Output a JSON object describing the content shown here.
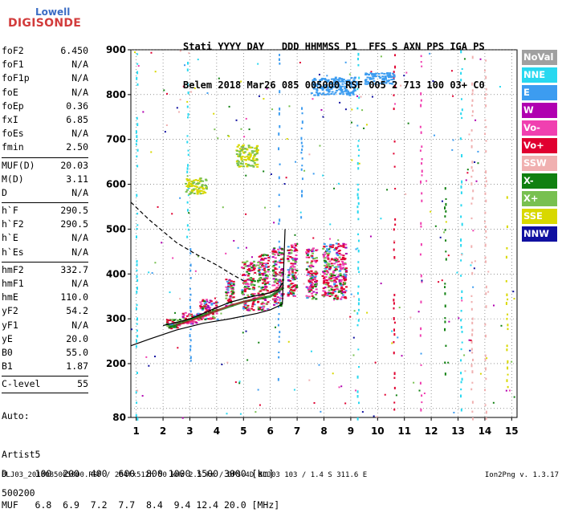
{
  "logo": {
    "brand_top": "Lowell",
    "brand_main": "DIGISONDE"
  },
  "header": {
    "line1": "Stati YYYY DAY   DDD HHMMSS P1  FFS S AXN PPS IGA PS",
    "line2": "Belem 2018 Mar26 085 005000 RSF 005 2 713 100 03+ C0"
  },
  "params_group1": [
    {
      "name": "foF2",
      "value": "6.450"
    },
    {
      "name": "foF1",
      "value": "N/A"
    },
    {
      "name": "foF1p",
      "value": "N/A"
    },
    {
      "name": "foE",
      "value": "N/A"
    },
    {
      "name": "foEp",
      "value": "0.36"
    },
    {
      "name": "fxI",
      "value": "6.85"
    },
    {
      "name": "foEs",
      "value": "N/A"
    },
    {
      "name": "fmin",
      "value": "2.50"
    }
  ],
  "params_group2": [
    {
      "name": "MUF(D)",
      "value": "20.03"
    },
    {
      "name": "M(D)",
      "value": "3.11"
    },
    {
      "name": "D",
      "value": "N/A"
    }
  ],
  "params_group3": [
    {
      "name": "h`F",
      "value": "290.5"
    },
    {
      "name": "h`F2",
      "value": "290.5"
    },
    {
      "name": "h`E",
      "value": "N/A"
    },
    {
      "name": "h`Es",
      "value": "N/A"
    }
  ],
  "params_group4": [
    {
      "name": "hmF2",
      "value": "332.7"
    },
    {
      "name": "hmF1",
      "value": "N/A"
    },
    {
      "name": "hmE",
      "value": "110.0"
    },
    {
      "name": "yF2",
      "value": "54.2"
    },
    {
      "name": "yF1",
      "value": "N/A"
    },
    {
      "name": "yE",
      "value": "20.0"
    },
    {
      "name": "B0",
      "value": "55.0"
    },
    {
      "name": "B1",
      "value": "1.87"
    }
  ],
  "params_group5": [
    {
      "name": "C-level",
      "value": "55"
    }
  ],
  "autoscale": {
    "line1": "Auto:",
    "line2": "Artist5",
    "line3": "500200"
  },
  "footer": {
    "d_row": "D     100  200  400  600  800 1000 1500 3000 [km]",
    "muf_row": "MUF   6.8  6.9  7.2  7.7  8.4  9.4 12.4 20.0 [MHz]",
    "filename": "BLJ03_2018085005000.RSF / 284fx512h 50 kHz 2.5 km / DPS-4D BLJ03 103 / 1.4 S 311.6 E",
    "version": "Ion2Png v. 1.3.17"
  },
  "legend": [
    {
      "label": "NoVal",
      "color": "#a0a0a0"
    },
    {
      "label": "NNE",
      "color": "#28d8f0"
    },
    {
      "label": "E",
      "color": "#3c9cf0"
    },
    {
      "label": "W",
      "color": "#b000b0"
    },
    {
      "label": "Vo-",
      "color": "#f040b0"
    },
    {
      "label": "Vo+",
      "color": "#e00030"
    },
    {
      "label": "SSW",
      "color": "#f0b0b0"
    },
    {
      "label": "X-",
      "color": "#108010"
    },
    {
      "label": "X+",
      "color": "#78c050"
    },
    {
      "label": "SSE",
      "color": "#d8d800"
    },
    {
      "label": "NNW",
      "color": "#1010a0"
    }
  ],
  "chart_data": {
    "type": "scatter",
    "xlabel": "",
    "ylabel": "",
    "xlim": [
      0.8,
      15.2
    ],
    "ylim": [
      80,
      900
    ],
    "x_ticks": [
      1,
      2,
      3,
      4,
      5,
      6,
      7,
      8,
      9,
      10,
      11,
      12,
      13,
      14,
      15
    ],
    "y_ticks": [
      80,
      100,
      200,
      300,
      400,
      500,
      600,
      700,
      800,
      900
    ],
    "y_tick_labels": [
      "80",
      "200",
      "300",
      "400",
      "500",
      "600",
      "700",
      "800",
      "900"
    ],
    "gridlines": [
      100,
      200,
      300,
      400,
      500,
      600,
      700,
      800,
      900
    ],
    "profile_solid": [
      [
        0.8,
        240
      ],
      [
        1.5,
        255
      ],
      [
        2.5,
        275
      ],
      [
        3.5,
        290
      ],
      [
        4.5,
        300
      ],
      [
        5.5,
        312
      ],
      [
        6.0,
        320
      ],
      [
        6.45,
        332.7
      ],
      [
        6.55,
        500
      ]
    ],
    "profile_dashed": [
      [
        0.8,
        560
      ],
      [
        1.5,
        520
      ],
      [
        2.5,
        470
      ],
      [
        3.2,
        445
      ],
      [
        4.0,
        420
      ],
      [
        4.6,
        398
      ],
      [
        5.0,
        385
      ]
    ],
    "trace": [
      [
        2.0,
        285
      ],
      [
        2.5,
        292
      ],
      [
        3.0,
        300
      ],
      [
        3.5,
        312
      ],
      [
        4.0,
        325
      ],
      [
        4.5,
        337
      ],
      [
        5.0,
        345
      ],
      [
        5.5,
        352
      ],
      [
        6.0,
        358
      ],
      [
        6.3,
        365
      ],
      [
        6.45,
        380
      ]
    ],
    "o_trace": [
      [
        2.2,
        280
      ],
      [
        3.0,
        298
      ],
      [
        4.0,
        318
      ],
      [
        5.0,
        338
      ],
      [
        6.0,
        350
      ],
      [
        6.5,
        370
      ]
    ],
    "x_trace": [
      [
        2.5,
        285
      ],
      [
        3.5,
        305
      ],
      [
        4.5,
        330
      ],
      [
        5.5,
        346
      ],
      [
        6.5,
        375
      ]
    ],
    "clusters": [
      {
        "x": [
          4.3,
          4.6
        ],
        "y": [
          330,
          390
        ]
      },
      {
        "x": [
          4.9,
          5.4
        ],
        "y": [
          320,
          430
        ]
      },
      {
        "x": [
          5.5,
          5.9
        ],
        "y": [
          320,
          445
        ]
      },
      {
        "x": [
          6.05,
          6.45
        ],
        "y": [
          330,
          460
        ]
      },
      {
        "x": [
          6.6,
          6.95
        ],
        "y": [
          350,
          470
        ]
      },
      {
        "x": [
          7.3,
          7.7
        ],
        "y": [
          345,
          460
        ]
      },
      {
        "x": [
          7.9,
          8.3
        ],
        "y": [
          350,
          470
        ]
      },
      {
        "x": [
          8.3,
          8.8
        ],
        "y": [
          345,
          470
        ]
      },
      {
        "x": [
          2.1,
          2.6
        ],
        "y": [
          280,
          300
        ]
      },
      {
        "x": [
          2.7,
          3.3
        ],
        "y": [
          290,
          315
        ]
      },
      {
        "x": [
          3.3,
          4.0
        ],
        "y": [
          300,
          345
        ]
      }
    ],
    "f_layer_upper": [
      {
        "x": [
          7.5,
          9.2
        ],
        "y": [
          800,
          840
        ]
      },
      {
        "x": [
          9.5,
          10.6
        ],
        "y": [
          825,
          850
        ]
      },
      {
        "x": [
          2.8,
          3.6
        ],
        "y": [
          580,
          615
        ]
      },
      {
        "x": [
          4.7,
          5.5
        ],
        "y": [
          640,
          690
        ]
      }
    ],
    "verticals": [
      {
        "x": 1.0,
        "y": [
          80,
          900
        ],
        "color": "#28d8f0"
      },
      {
        "x": 2.9,
        "y": [
          470,
          900
        ],
        "color": "#28d8f0"
      },
      {
        "x": 3.0,
        "y": [
          200,
          460
        ],
        "color": "#3c9cf0"
      },
      {
        "x": 6.3,
        "y": [
          80,
          900
        ],
        "color": "#3c9cf0"
      },
      {
        "x": 7.15,
        "y": [
          500,
          800
        ],
        "color": "#3c9cf0"
      },
      {
        "x": 9.25,
        "y": [
          80,
          900
        ],
        "color": "#28d8f0"
      },
      {
        "x": 10.6,
        "y": [
          100,
          900
        ],
        "color": "#e00030"
      },
      {
        "x": 11.6,
        "y": [
          100,
          900
        ],
        "color": "#f040b0"
      },
      {
        "x": 13.1,
        "y": [
          100,
          900
        ],
        "color": "#28d8f0"
      },
      {
        "x": 13.5,
        "y": [
          80,
          900
        ],
        "color": "#f0b0b0"
      },
      {
        "x": 14.0,
        "y": [
          80,
          900
        ],
        "color": "#f0b0b0"
      },
      {
        "x": 12.5,
        "y": [
          180,
          600
        ],
        "color": "#108010"
      },
      {
        "x": 14.8,
        "y": [
          150,
          600
        ],
        "color": "#d8d800"
      }
    ]
  }
}
